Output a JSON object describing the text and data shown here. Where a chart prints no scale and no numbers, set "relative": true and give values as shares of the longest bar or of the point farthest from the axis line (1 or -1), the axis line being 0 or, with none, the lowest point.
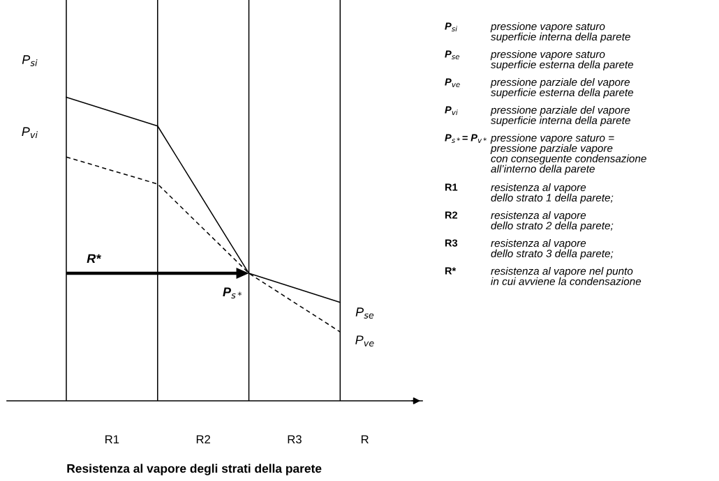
{
  "chart_data": {
    "type": "line",
    "relative": true,
    "categories": [
      null,
      null,
      null,
      null
    ],
    "grid": "x",
    "marker": "none",
    "series": [
      {
        "color": "#000000",
        "line_style": "solid",
        "values": [
          1.0,
          0.905,
          0.42,
          0.324
        ]
      },
      {
        "color": "#000000",
        "line_style": "dashed",
        "values": [
          0.803,
          0.714,
          0.42,
          0.227
        ]
      }
    ],
    "annotations": [
      "P$_{si}$",
      "P$_{vi}$",
      "P$_{se}$",
      "P$_{ve}$",
      "P$_{s*}$",
      "R*",
      "R1",
      "R2",
      "R3",
      "R",
      "Resistenza al vapore degli strati della parete",
      "P$_{si}$",
      "pressione vapore saturo\nsuperficie interna della parete",
      "P$_{se}$",
      "pressione vapore saturo\nsuperficie esterna della parete",
      "P$_{ve}$",
      "pressione parziale del vapore\nsuperficie esterna della parete",
      "P$_{vi}$",
      "pressione parziale del vapore\nsuperficie interna della parete",
      "P$_{s*}$= P$_{v*}$",
      "pressione vapore saturo =\npressione parziale vapore\ncon conseguente condensazione\nall’interno della parete",
      "R1",
      "resistenza al vapore\ndello strato 1 della parete;",
      "R2",
      "resistenza al vapore\ndello strato 2 della parete;",
      "R3",
      "resistenza al vapore\ndello strato 3 della parete;",
      "R*",
      "resistenza al vapore nel punto\nin cui avviene la condensazione"
    ]
  }
}
